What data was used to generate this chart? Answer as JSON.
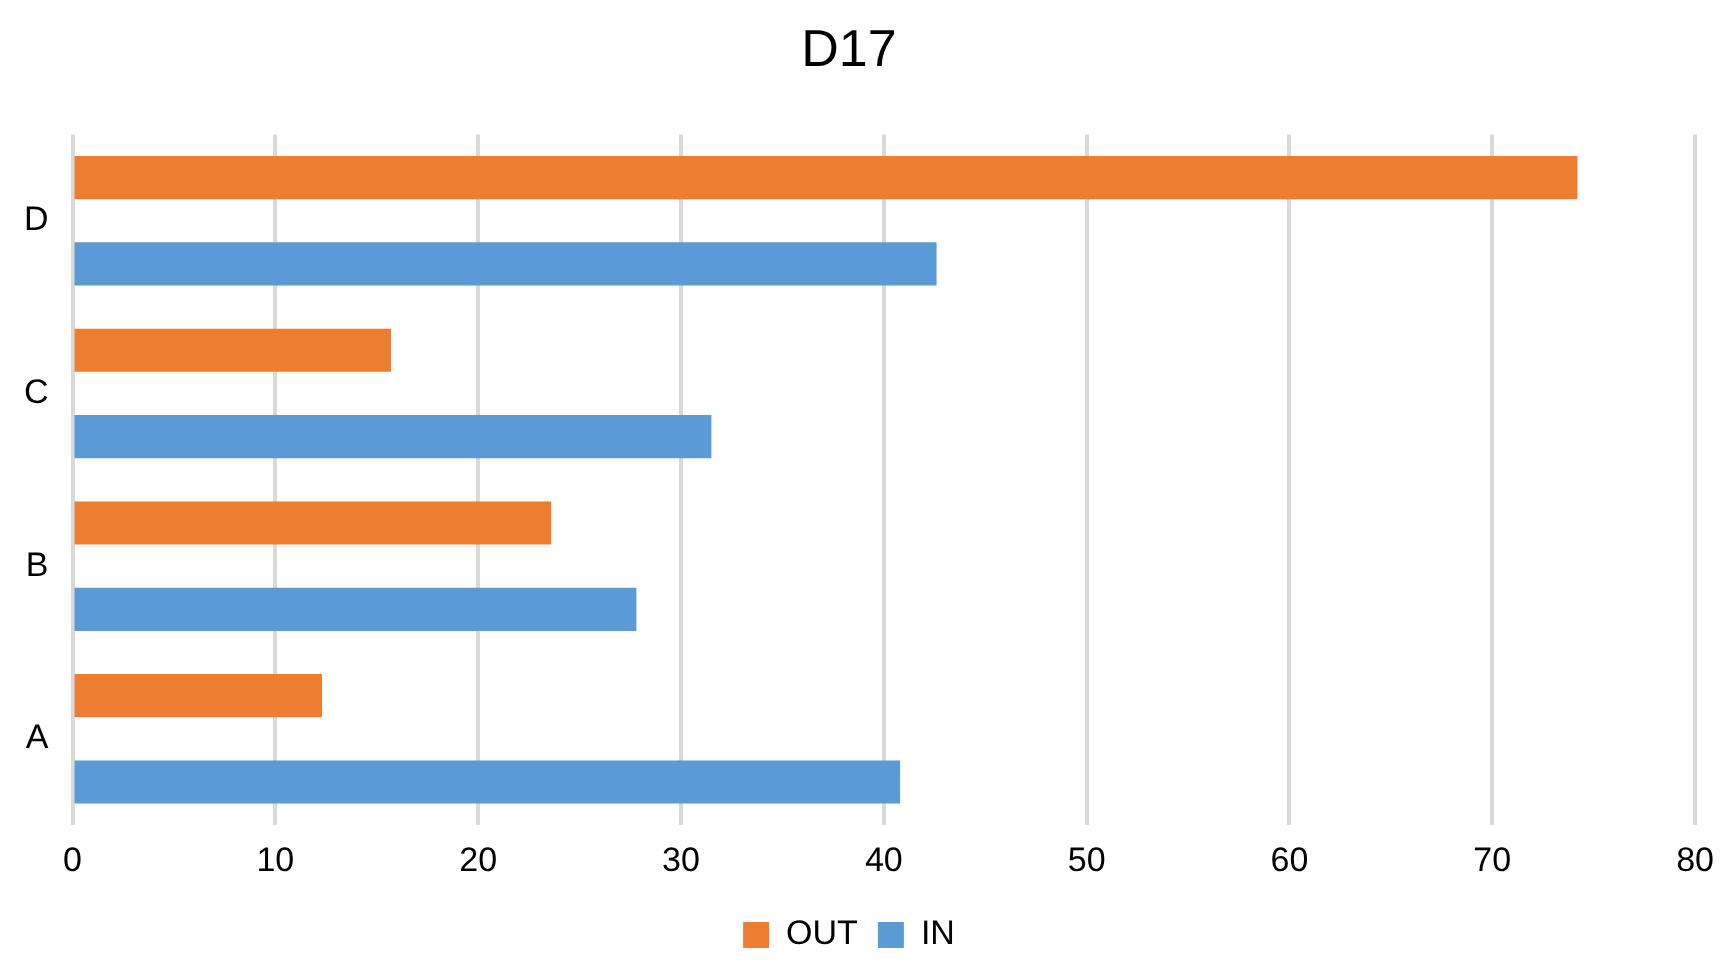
{
  "chart_data": {
    "type": "bar",
    "orientation": "horizontal",
    "title": "D17",
    "categories": [
      "D",
      "C",
      "B",
      "A"
    ],
    "series": [
      {
        "name": "OUT",
        "color": "#ed7d31",
        "values": [
          74.2,
          15.7,
          23.6,
          12.3
        ]
      },
      {
        "name": "IN",
        "color": "#5b9bd5",
        "values": [
          42.6,
          31.5,
          27.8,
          40.8
        ]
      }
    ],
    "xlim": [
      0,
      80
    ],
    "xticks": [
      0,
      10,
      20,
      30,
      40,
      50,
      60,
      70,
      80
    ],
    "grid": "x",
    "legend": "bottom"
  }
}
